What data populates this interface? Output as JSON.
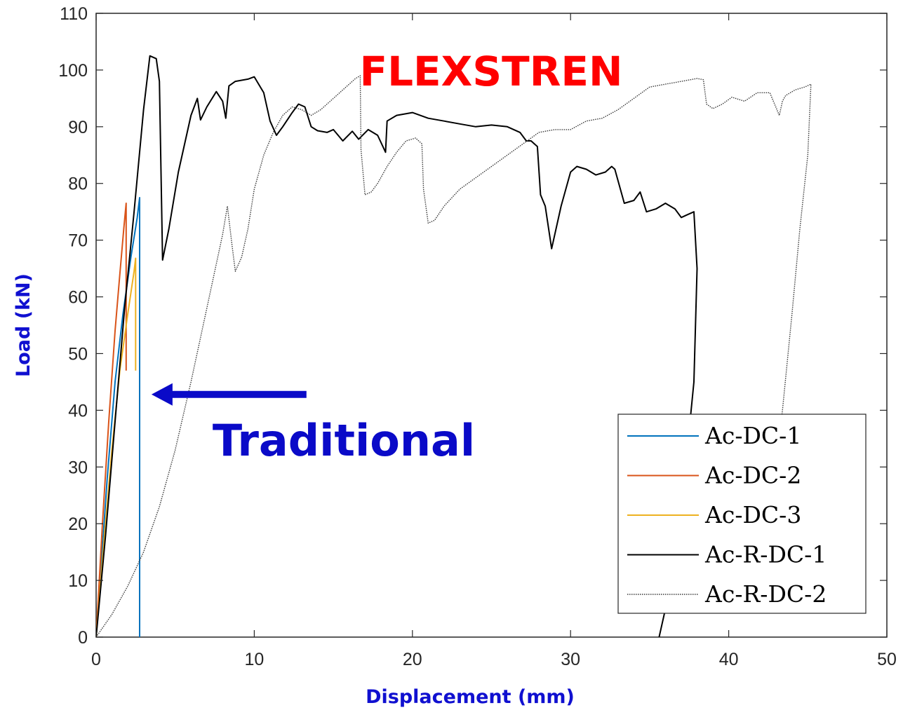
{
  "chart_data": {
    "type": "line",
    "xlabel": "Displacement (mm)",
    "ylabel": "Load (kN)",
    "xlim": [
      0,
      50
    ],
    "ylim": [
      0,
      110
    ],
    "xticks": [
      "0",
      "10",
      "20",
      "30",
      "40",
      "50"
    ],
    "yticks": [
      "0",
      "10",
      "20",
      "30",
      "40",
      "50",
      "60",
      "70",
      "80",
      "90",
      "100",
      "110"
    ],
    "grid": false,
    "legend_position": "bottom-right",
    "annotations": [
      {
        "id": "flexstren",
        "text": "FLEXSTREN",
        "color": "#ff0000"
      },
      {
        "id": "traditional",
        "text": "Traditional",
        "color": "#0a0ac8"
      }
    ],
    "arrow": {
      "from": [
        13.3,
        42.8
      ],
      "to": [
        3.5,
        42.8
      ],
      "color": "#0a0ac8"
    },
    "series": [
      {
        "name": "Ac-DC-1",
        "color": "#0072bd",
        "style": "solid",
        "x": [
          0,
          0.3,
          0.7,
          1.2,
          1.7,
          2.2,
          2.6,
          2.75,
          2.75
        ],
        "y": [
          0,
          12,
          28,
          45,
          57,
          67,
          74,
          77.5,
          0
        ]
      },
      {
        "name": "Ac-DC-2",
        "color": "#d95319",
        "style": "solid",
        "x": [
          0,
          0.4,
          0.8,
          1.2,
          1.5,
          1.75,
          1.9,
          1.9
        ],
        "y": [
          0,
          20,
          38,
          54,
          64,
          72,
          76.5,
          47
        ]
      },
      {
        "name": "Ac-DC-3",
        "color": "#edb120",
        "style": "solid",
        "x": [
          0,
          0.5,
          1.0,
          1.5,
          2.0,
          2.4,
          2.5,
          2.5
        ],
        "y": [
          0,
          17,
          33,
          47,
          57,
          64.5,
          66.8,
          47
        ]
      },
      {
        "name": "Ac-R-DC-1",
        "color": "#000000",
        "style": "solid",
        "x": [
          0,
          0.6,
          1.2,
          1.8,
          2.4,
          3.0,
          3.4,
          3.8,
          4.0,
          4.2,
          4.6,
          5.2,
          6.0,
          6.4,
          6.6,
          7.0,
          7.6,
          8.0,
          8.2,
          8.4,
          8.8,
          9.6,
          10.0,
          10.6,
          11.0,
          11.4,
          11.8,
          12.4,
          12.8,
          13.2,
          13.6,
          14.0,
          14.6,
          15.0,
          15.6,
          16.2,
          16.6,
          17.2,
          17.8,
          18.3,
          18.4,
          19.0,
          20.0,
          21.0,
          22.0,
          23.0,
          24.0,
          25.0,
          26.0,
          26.8,
          27.2,
          27.5,
          27.9,
          28.1,
          28.4,
          28.8,
          29.4,
          30.0,
          30.4,
          31.0,
          31.6,
          32.2,
          32.6,
          32.8,
          33.4,
          34.0,
          34.4,
          34.8,
          35.4,
          36.0,
          36.6,
          37.0,
          37.4,
          37.8,
          38.0,
          37.8,
          37.2,
          36.4,
          35.6
        ],
        "y": [
          0,
          18,
          38,
          58,
          75,
          93,
          102.5,
          102,
          98,
          66.5,
          72,
          82,
          92,
          95,
          91.2,
          93.5,
          96.2,
          94.5,
          91.5,
          97.2,
          98,
          98.4,
          98.8,
          96,
          91,
          88.5,
          90,
          92.5,
          94,
          93.5,
          90,
          89.3,
          89,
          89.5,
          87.5,
          89.2,
          87.8,
          89.5,
          88.5,
          85.5,
          91,
          92,
          92.5,
          91.5,
          91,
          90.5,
          90,
          90.3,
          90,
          89,
          87.5,
          87.5,
          86.5,
          78,
          76,
          68.5,
          76,
          82,
          83,
          82.5,
          81.5,
          82,
          83,
          82.5,
          76.5,
          77,
          78.5,
          75,
          75.5,
          76.5,
          75.5,
          74,
          74.5,
          75,
          65,
          45,
          28,
          10,
          0
        ]
      },
      {
        "name": "Ac-R-DC-2",
        "color": "#3a3a3a",
        "style": "dotted",
        "x": [
          0,
          1,
          2,
          3,
          4,
          5,
          6,
          7,
          8,
          8.3,
          8.6,
          8.8,
          9.2,
          9.6,
          10.0,
          10.6,
          11.2,
          11.8,
          12.4,
          13.0,
          13.6,
          14.2,
          15.0,
          15.8,
          16.4,
          16.7,
          16.75,
          17.0,
          17.4,
          17.8,
          18.4,
          19.0,
          19.6,
          20.2,
          20.6,
          20.7,
          21.0,
          21.4,
          22.0,
          23.0,
          24.0,
          25.0,
          26.0,
          27.0,
          28.0,
          29.0,
          30.0,
          31.0,
          32.0,
          33.0,
          34.0,
          35.0,
          36.0,
          37.0,
          38.0,
          38.4,
          38.6,
          39.0,
          39.6,
          40.2,
          41.0,
          41.8,
          42.6,
          43.2,
          43.4,
          43.6,
          44.2,
          44.8,
          45.2,
          45.0,
          44.5,
          44.0,
          43.4,
          42.9
        ],
        "y": [
          0,
          4,
          9,
          15,
          23,
          33,
          45,
          58,
          71,
          76,
          69,
          64.5,
          67,
          72,
          79,
          85,
          89,
          92,
          93.5,
          93,
          92,
          93,
          95,
          97,
          98.5,
          99,
          86,
          78,
          78.5,
          80,
          83,
          85.5,
          87.5,
          88,
          87,
          79,
          73,
          73.5,
          76,
          79,
          81,
          83,
          85,
          87,
          89,
          89.5,
          89.5,
          91,
          91.5,
          93,
          95,
          97,
          97.5,
          98,
          98.5,
          98.3,
          94,
          93.2,
          94,
          95.2,
          94.5,
          96,
          96,
          92,
          94.5,
          95.5,
          96.5,
          97,
          97.5,
          85,
          72,
          57,
          40,
          28
        ]
      }
    ]
  }
}
